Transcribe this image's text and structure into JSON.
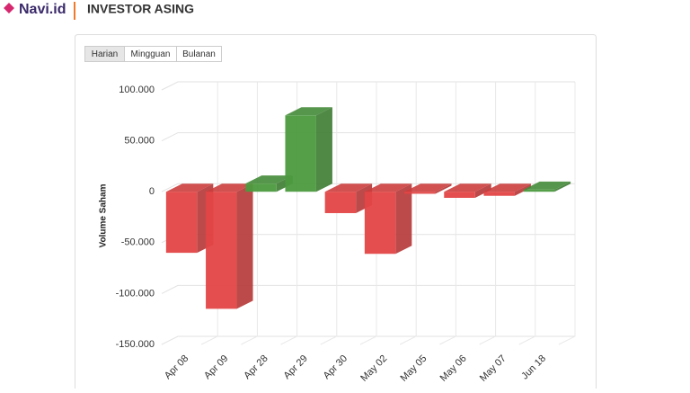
{
  "header": {
    "logo": "Navi.id",
    "title": "INVESTOR ASING"
  },
  "buttons": [
    "Harian",
    "Mingguan",
    "Bulanan"
  ],
  "chart_data": {
    "type": "bar3d",
    "y_label": "Volume Saham",
    "categories": [
      "Apr 08",
      "Apr 09",
      "Apr 28",
      "Apr 29",
      "Apr 30",
      "May 02",
      "May 05",
      "May 06",
      "May 07",
      "Jun 18"
    ],
    "values": [
      -60000,
      -115000,
      8000,
      75000,
      -21000,
      -61000,
      -2000,
      -6000,
      -4000,
      2000
    ],
    "positive_color": "#4c9a3f",
    "negative_color": "#e34444",
    "ylim": [
      -150000,
      100000
    ],
    "yticks": [
      {
        "value": -150000,
        "label": "-150.000"
      },
      {
        "value": -100000,
        "label": "-100.000"
      },
      {
        "value": -50000,
        "label": "-50.000"
      },
      0,
      {
        "value": 50000,
        "label": "50.000"
      },
      {
        "value": 100000,
        "label": "100.000"
      }
    ],
    "grid": true
  }
}
